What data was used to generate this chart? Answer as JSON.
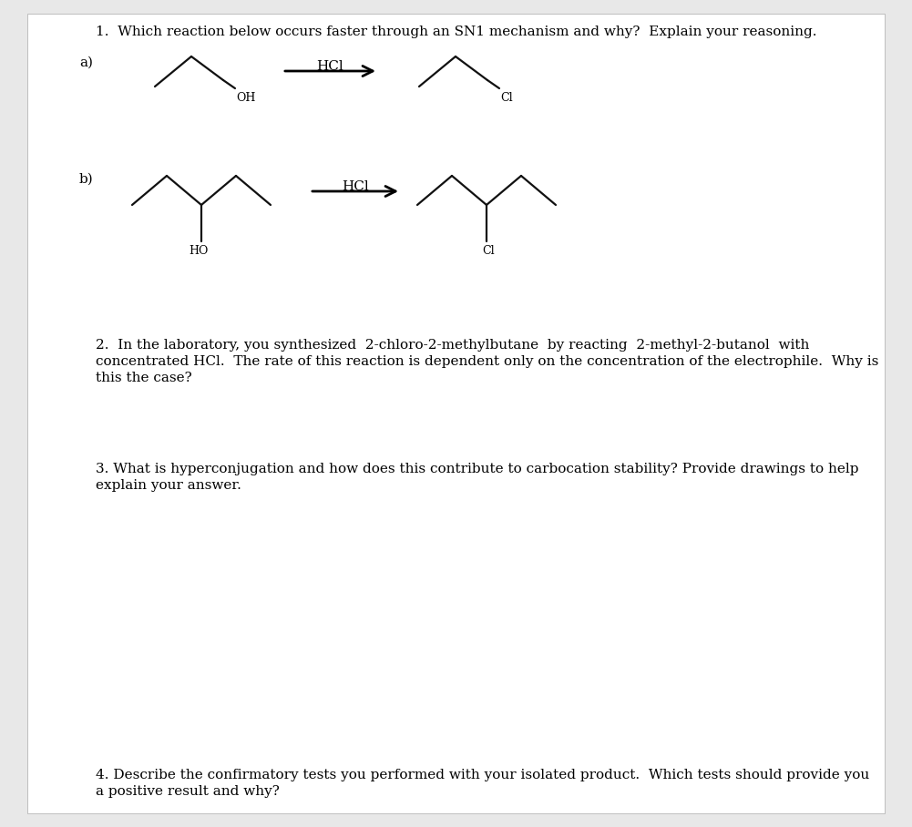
{
  "bg_color": "#e8e8e8",
  "page_bg": "#ffffff",
  "text_color": "#000000",
  "title_q1": "1.  Which reaction below occurs faster through an SN1 mechanism and why?  Explain your reasoning.",
  "label_a": "a)",
  "label_b": "b)",
  "hcl_label": "HCl",
  "oh_label": "OH",
  "cl_label_a": "Cl",
  "ho_label_b": "HO",
  "cl_label_b": "Cl",
  "q2_line1": "2.  In the laboratory, you synthesized  2-chloro-2-methylbutane  by reacting  2-methyl-2-butanol  with",
  "q2_line2": "concentrated HCl.  The rate of this reaction is dependent only on the concentration of the electrophile.  Why is",
  "q2_line3": "this the case?",
  "q3_line1": "3. What is hyperconjugation and how does this contribute to carbocation stability? Provide drawings to help",
  "q3_line2": "explain your answer.",
  "q4_line1": "4. Describe the confirmatory tests you performed with your isolated product.  Which tests should provide you",
  "q4_line2": "a positive result and why?",
  "font_size_main": 11,
  "font_family": "DejaVu Serif"
}
